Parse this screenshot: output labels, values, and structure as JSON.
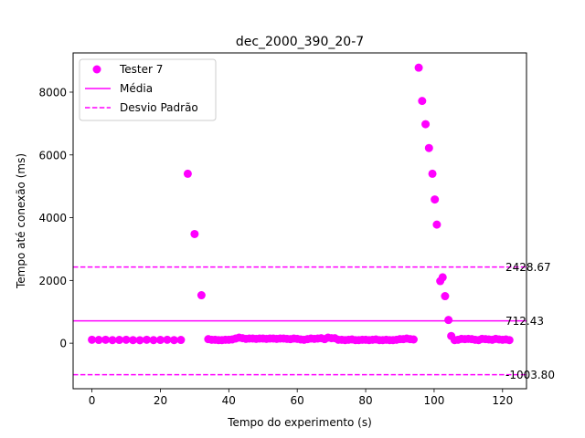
{
  "chart_data": {
    "type": "scatter",
    "title": "dec_2000_390_20-7",
    "xlabel": "Tempo do experimento (s)",
    "ylabel": "Tempo até conexão (ms)",
    "xlim": [
      -5.5,
      127
    ],
    "ylim": [
      -1450,
      9250
    ],
    "xticks": [
      0,
      20,
      40,
      60,
      80,
      100,
      120
    ],
    "yticks": [
      0,
      2000,
      4000,
      6000,
      8000
    ],
    "grid": false,
    "legend_position": "top-left",
    "color": "#ff00ff",
    "legend": {
      "scatter_label": "Tester 7",
      "mean_label": "Média",
      "std_label": "Desvio Padrão"
    },
    "lines": {
      "mean": 712.43,
      "upper": 2428.67,
      "lower": -1003.8
    },
    "line_labels": {
      "mean": "712.43",
      "upper": "2428.67",
      "lower": "-1003.80"
    },
    "series": [
      {
        "name": "Tester 7",
        "points": [
          [
            0,
            110
          ],
          [
            2,
            105
          ],
          [
            4,
            110
          ],
          [
            6,
            100
          ],
          [
            8,
            105
          ],
          [
            10,
            110
          ],
          [
            12,
            100
          ],
          [
            14,
            95
          ],
          [
            16,
            110
          ],
          [
            18,
            100
          ],
          [
            20,
            105
          ],
          [
            22,
            110
          ],
          [
            24,
            100
          ],
          [
            26,
            105
          ],
          [
            28,
            5400
          ],
          [
            30,
            3480
          ],
          [
            32,
            1530
          ],
          [
            34,
            130
          ],
          [
            35,
            110
          ],
          [
            36,
            110
          ],
          [
            37,
            100
          ],
          [
            38,
            100
          ],
          [
            39,
            110
          ],
          [
            40,
            110
          ],
          [
            41,
            120
          ],
          [
            42,
            150
          ],
          [
            43,
            180
          ],
          [
            44,
            160
          ],
          [
            45,
            140
          ],
          [
            46,
            150
          ],
          [
            47,
            150
          ],
          [
            48,
            140
          ],
          [
            49,
            150
          ],
          [
            50,
            150
          ],
          [
            51,
            140
          ],
          [
            52,
            150
          ],
          [
            53,
            150
          ],
          [
            54,
            140
          ],
          [
            55,
            150
          ],
          [
            56,
            150
          ],
          [
            57,
            140
          ],
          [
            58,
            130
          ],
          [
            59,
            150
          ],
          [
            60,
            140
          ],
          [
            61,
            120
          ],
          [
            62,
            110
          ],
          [
            63,
            130
          ],
          [
            64,
            150
          ],
          [
            65,
            140
          ],
          [
            66,
            150
          ],
          [
            67,
            160
          ],
          [
            68,
            130
          ],
          [
            69,
            180
          ],
          [
            70,
            160
          ],
          [
            71,
            160
          ],
          [
            72,
            110
          ],
          [
            73,
            110
          ],
          [
            74,
            100
          ],
          [
            75,
            110
          ],
          [
            76,
            120
          ],
          [
            77,
            100
          ],
          [
            78,
            100
          ],
          [
            79,
            110
          ],
          [
            80,
            110
          ],
          [
            81,
            100
          ],
          [
            82,
            110
          ],
          [
            83,
            120
          ],
          [
            84,
            100
          ],
          [
            85,
            100
          ],
          [
            86,
            110
          ],
          [
            87,
            100
          ],
          [
            88,
            100
          ],
          [
            89,
            110
          ],
          [
            90,
            130
          ],
          [
            91,
            130
          ],
          [
            92,
            150
          ],
          [
            93,
            130
          ],
          [
            94,
            120
          ],
          [
            95.5,
            8780
          ],
          [
            96.5,
            7720
          ],
          [
            97.5,
            6980
          ],
          [
            98.5,
            6220
          ],
          [
            99.5,
            5400
          ],
          [
            100.2,
            4580
          ],
          [
            100.8,
            3780
          ],
          [
            101.8,
            1980
          ],
          [
            102.5,
            2100
          ],
          [
            103.2,
            1500
          ],
          [
            104.2,
            740
          ],
          [
            105,
            230
          ],
          [
            106,
            100
          ],
          [
            107,
            110
          ],
          [
            108,
            140
          ],
          [
            109,
            130
          ],
          [
            110,
            140
          ],
          [
            111,
            130
          ],
          [
            112,
            110
          ],
          [
            113,
            100
          ],
          [
            114,
            140
          ],
          [
            115,
            130
          ],
          [
            116,
            120
          ],
          [
            117,
            110
          ],
          [
            118,
            140
          ],
          [
            119,
            120
          ],
          [
            120,
            110
          ],
          [
            121,
            120
          ],
          [
            122,
            100
          ]
        ]
      }
    ]
  }
}
